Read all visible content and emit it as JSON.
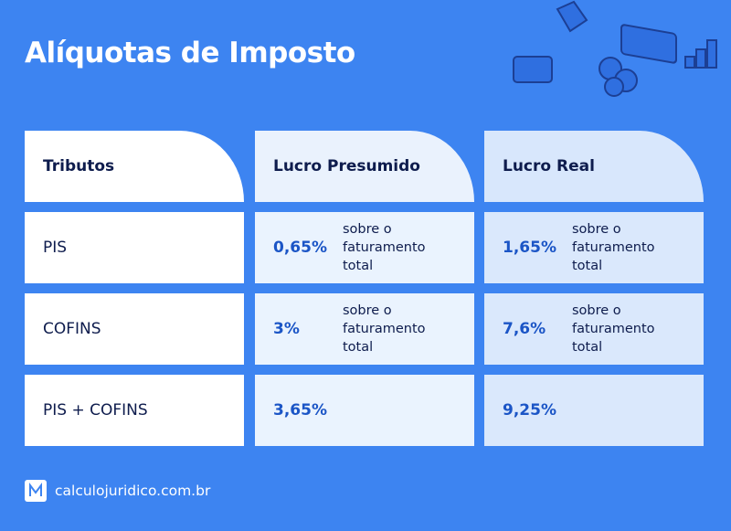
{
  "header": {
    "title": "Alíquotas de Imposto"
  },
  "table": {
    "columns": [
      "Tributos",
      "Lucro Presumido",
      "Lucro Real"
    ],
    "rows": [
      {
        "label": "PIS",
        "cells": [
          {
            "rate": "0,65%",
            "note": "sobre o faturamento total"
          },
          {
            "rate": "1,65%",
            "note": "sobre o faturamento total"
          }
        ]
      },
      {
        "label": "COFINS",
        "cells": [
          {
            "rate": "3%",
            "note": "sobre o faturamento total"
          },
          {
            "rate": "7,6%",
            "note": "sobre o faturamento total"
          }
        ]
      },
      {
        "label": "PIS + COFINS",
        "cells": [
          {
            "rate": "3,65%"
          },
          {
            "rate": "9,25%"
          }
        ]
      }
    ]
  },
  "footer": {
    "site": "calculojuridico.com.br"
  }
}
